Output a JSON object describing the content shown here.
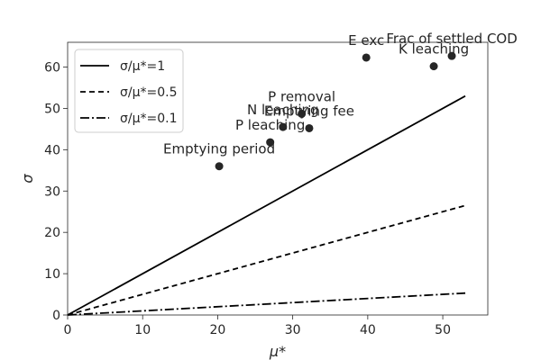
{
  "chart_data": {
    "type": "scatter",
    "title": "",
    "xlabel": "μ*",
    "ylabel": "σ",
    "xlim": [
      0,
      56
    ],
    "ylim": [
      0,
      66
    ],
    "xticks": [
      0,
      10,
      20,
      30,
      40,
      50
    ],
    "yticks": [
      0,
      10,
      20,
      30,
      40,
      50,
      60
    ],
    "grid": false,
    "legend_position": "top-left",
    "points": [
      {
        "label": "Emptying period",
        "x": 20.2,
        "y": 36.0
      },
      {
        "label": "P leaching",
        "x": 27.0,
        "y": 41.8
      },
      {
        "label": "N leaching",
        "x": 28.7,
        "y": 45.5
      },
      {
        "label": "P removal",
        "x": 31.2,
        "y": 48.7
      },
      {
        "label": "Emptying fee",
        "x": 32.2,
        "y": 45.2
      },
      {
        "label": "E exc",
        "x": 39.8,
        "y": 62.3
      },
      {
        "label": "K leaching",
        "x": 48.8,
        "y": 60.2
      },
      {
        "label": "Frac of settled COD",
        "x": 51.2,
        "y": 62.7
      }
    ],
    "reference_lines": [
      {
        "name": "σ/μ*=1",
        "slope": 1.0,
        "x_range": [
          0,
          53
        ],
        "style": "solid"
      },
      {
        "name": "σ/μ*=0.5",
        "slope": 0.5,
        "x_range": [
          0,
          53
        ],
        "style": "dashed"
      },
      {
        "name": "σ/μ*=0.1",
        "slope": 0.1,
        "x_range": [
          0,
          53
        ],
        "style": "dashdot"
      }
    ],
    "colors": {
      "marker": "#262626",
      "line": "#000000",
      "axes": "#262626"
    }
  }
}
